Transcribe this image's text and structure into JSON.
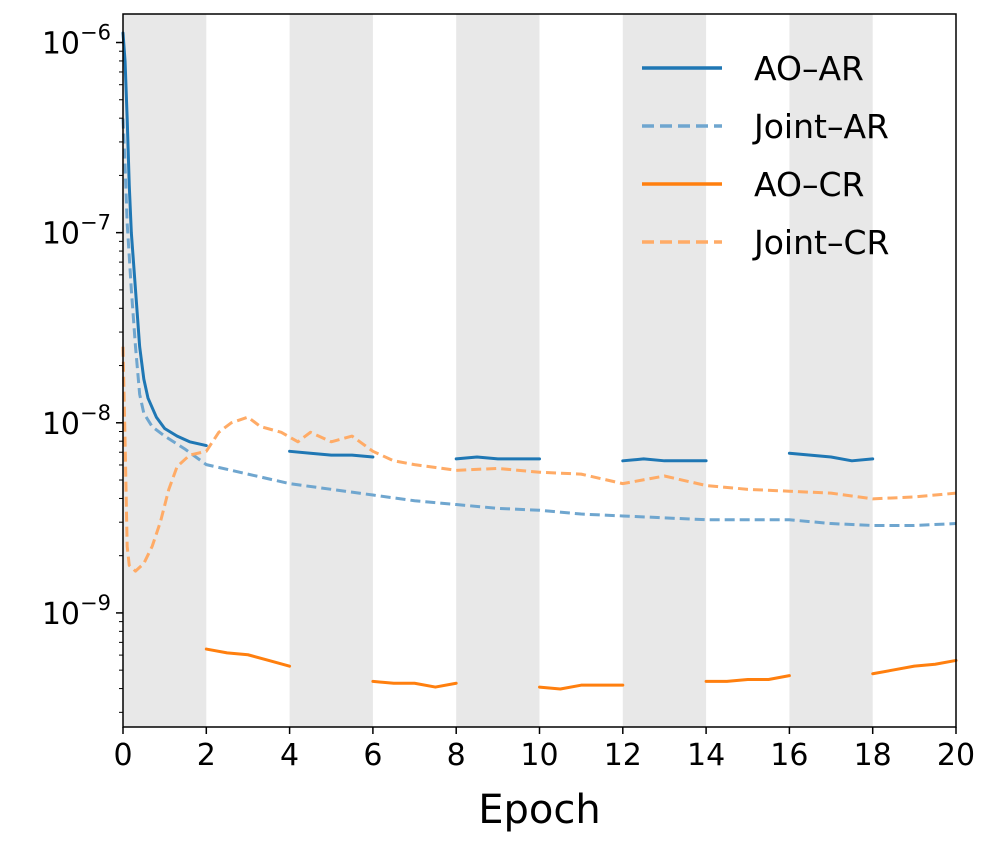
{
  "chart_data": {
    "type": "line",
    "title": "",
    "xlabel": "Epoch",
    "ylabel": "",
    "xlim": [
      0,
      20
    ],
    "ylim_log10": [
      -9.6,
      -5.85
    ],
    "y_scale": "log",
    "x_ticks": [
      0,
      2,
      4,
      6,
      8,
      10,
      12,
      14,
      16,
      18,
      20
    ],
    "x_tick_labels": [
      "0",
      "2",
      "4",
      "6",
      "8",
      "10",
      "12",
      "14",
      "16",
      "18",
      "20"
    ],
    "y_tick_exponents": [
      -6,
      -7,
      -8,
      -9
    ],
    "y_tick_base": "10",
    "y_tick_exp_labels": [
      "−6",
      "−7",
      "−8",
      "−9"
    ],
    "shaded_epoch_ranges": [
      [
        0,
        2
      ],
      [
        4,
        6
      ],
      [
        8,
        10
      ],
      [
        12,
        14
      ],
      [
        16,
        18
      ]
    ],
    "shade_color": "#e8e8e8",
    "legend": {
      "placement": "top-right",
      "entries": [
        {
          "label": "AO–AR",
          "color": "#1f77b4",
          "style": "solid"
        },
        {
          "label": "Joint–AR",
          "color": "#6fa6cf",
          "style": "dashed"
        },
        {
          "label": "AO–CR",
          "color": "#ff7f0e",
          "style": "solid"
        },
        {
          "label": "Joint–CR",
          "color": "#ffab66",
          "style": "dashed"
        }
      ]
    },
    "series": [
      {
        "name": "AO–AR",
        "color": "#1f77b4",
        "style": "solid",
        "segments": [
          {
            "points": [
              [
                0,
                -5.95
              ],
              [
                0.05,
                -6.1
              ],
              [
                0.1,
                -6.4
              ],
              [
                0.15,
                -6.75
              ],
              [
                0.2,
                -7.0
              ],
              [
                0.3,
                -7.3
              ],
              [
                0.4,
                -7.6
              ],
              [
                0.5,
                -7.77
              ],
              [
                0.6,
                -7.87
              ],
              [
                0.8,
                -7.97
              ],
              [
                1.0,
                -8.03
              ],
              [
                1.3,
                -8.07
              ],
              [
                1.6,
                -8.1
              ],
              [
                2.0,
                -8.12
              ]
            ]
          },
          {
            "points": [
              [
                4.0,
                -8.15
              ],
              [
                4.5,
                -8.16
              ],
              [
                5.0,
                -8.17
              ],
              [
                5.5,
                -8.17
              ],
              [
                6.0,
                -8.18
              ]
            ]
          },
          {
            "points": [
              [
                8.0,
                -8.19
              ],
              [
                8.5,
                -8.18
              ],
              [
                9.0,
                -8.19
              ],
              [
                9.5,
                -8.19
              ],
              [
                10.0,
                -8.19
              ]
            ]
          },
          {
            "points": [
              [
                12.0,
                -8.2
              ],
              [
                12.5,
                -8.19
              ],
              [
                13.0,
                -8.2
              ],
              [
                13.5,
                -8.2
              ],
              [
                14.0,
                -8.2
              ]
            ]
          },
          {
            "points": [
              [
                16.0,
                -8.16
              ],
              [
                16.5,
                -8.17
              ],
              [
                17.0,
                -8.18
              ],
              [
                17.5,
                -8.2
              ],
              [
                18.0,
                -8.19
              ]
            ]
          }
        ]
      },
      {
        "name": "Joint–AR",
        "color": "#6fa6cf",
        "style": "dashed",
        "segments": [
          {
            "points": [
              [
                0,
                -6.4
              ],
              [
                0.05,
                -6.65
              ],
              [
                0.1,
                -6.95
              ],
              [
                0.2,
                -7.3
              ],
              [
                0.3,
                -7.6
              ],
              [
                0.4,
                -7.85
              ],
              [
                0.5,
                -7.95
              ],
              [
                0.7,
                -8.02
              ],
              [
                1.0,
                -8.07
              ],
              [
                1.5,
                -8.14
              ],
              [
                2.0,
                -8.22
              ],
              [
                3.0,
                -8.27
              ],
              [
                4.0,
                -8.32
              ],
              [
                5.0,
                -8.35
              ],
              [
                6.0,
                -8.38
              ],
              [
                7.0,
                -8.41
              ],
              [
                8.0,
                -8.43
              ],
              [
                9.0,
                -8.45
              ],
              [
                10.0,
                -8.46
              ],
              [
                11.0,
                -8.48
              ],
              [
                12.0,
                -8.49
              ],
              [
                13.0,
                -8.5
              ],
              [
                14.0,
                -8.51
              ],
              [
                15.0,
                -8.51
              ],
              [
                16.0,
                -8.51
              ],
              [
                17.0,
                -8.53
              ],
              [
                18.0,
                -8.54
              ],
              [
                19.0,
                -8.54
              ],
              [
                20.0,
                -8.53
              ]
            ]
          }
        ]
      },
      {
        "name": "AO–CR",
        "color": "#ff7f0e",
        "style": "solid",
        "segments": [
          {
            "points": [
              [
                2.0,
                -9.19
              ],
              [
                2.5,
                -9.21
              ],
              [
                3.0,
                -9.22
              ],
              [
                3.5,
                -9.25
              ],
              [
                4.0,
                -9.28
              ]
            ]
          },
          {
            "points": [
              [
                6.0,
                -9.36
              ],
              [
                6.5,
                -9.37
              ],
              [
                7.0,
                -9.37
              ],
              [
                7.5,
                -9.39
              ],
              [
                8.0,
                -9.37
              ]
            ]
          },
          {
            "points": [
              [
                10.0,
                -9.39
              ],
              [
                10.5,
                -9.4
              ],
              [
                11.0,
                -9.38
              ],
              [
                11.5,
                -9.38
              ],
              [
                12.0,
                -9.38
              ]
            ]
          },
          {
            "points": [
              [
                14.0,
                -9.36
              ],
              [
                14.5,
                -9.36
              ],
              [
                15.0,
                -9.35
              ],
              [
                15.5,
                -9.35
              ],
              [
                16.0,
                -9.33
              ]
            ]
          },
          {
            "points": [
              [
                18.0,
                -9.32
              ],
              [
                18.5,
                -9.3
              ],
              [
                19.0,
                -9.28
              ],
              [
                19.5,
                -9.27
              ],
              [
                20.0,
                -9.25
              ]
            ]
          }
        ]
      },
      {
        "name": "Joint–CR",
        "color": "#ffab66",
        "style": "dashed",
        "segments": [
          {
            "points": [
              [
                0,
                -7.6
              ],
              [
                0.05,
                -8.1
              ],
              [
                0.1,
                -8.65
              ],
              [
                0.15,
                -8.75
              ],
              [
                0.3,
                -8.78
              ],
              [
                0.5,
                -8.74
              ],
              [
                0.7,
                -8.65
              ],
              [
                0.9,
                -8.52
              ],
              [
                1.1,
                -8.35
              ],
              [
                1.3,
                -8.23
              ],
              [
                1.6,
                -8.17
              ],
              [
                2.0,
                -8.15
              ],
              [
                2.3,
                -8.05
              ],
              [
                2.6,
                -8.0
              ],
              [
                3.0,
                -7.97
              ],
              [
                3.3,
                -8.02
              ],
              [
                3.8,
                -8.05
              ],
              [
                4.2,
                -8.1
              ],
              [
                4.5,
                -8.05
              ],
              [
                5.0,
                -8.1
              ],
              [
                5.5,
                -8.07
              ],
              [
                6.0,
                -8.15
              ],
              [
                6.5,
                -8.2
              ],
              [
                7.0,
                -8.22
              ],
              [
                8.0,
                -8.25
              ],
              [
                9.0,
                -8.24
              ],
              [
                10.0,
                -8.26
              ],
              [
                11.0,
                -8.27
              ],
              [
                12.0,
                -8.32
              ],
              [
                13.0,
                -8.28
              ],
              [
                14.0,
                -8.33
              ],
              [
                15.0,
                -8.35
              ],
              [
                16.0,
                -8.36
              ],
              [
                17.0,
                -8.37
              ],
              [
                18.0,
                -8.4
              ],
              [
                19.0,
                -8.39
              ],
              [
                20.0,
                -8.37
              ]
            ]
          }
        ]
      }
    ]
  }
}
